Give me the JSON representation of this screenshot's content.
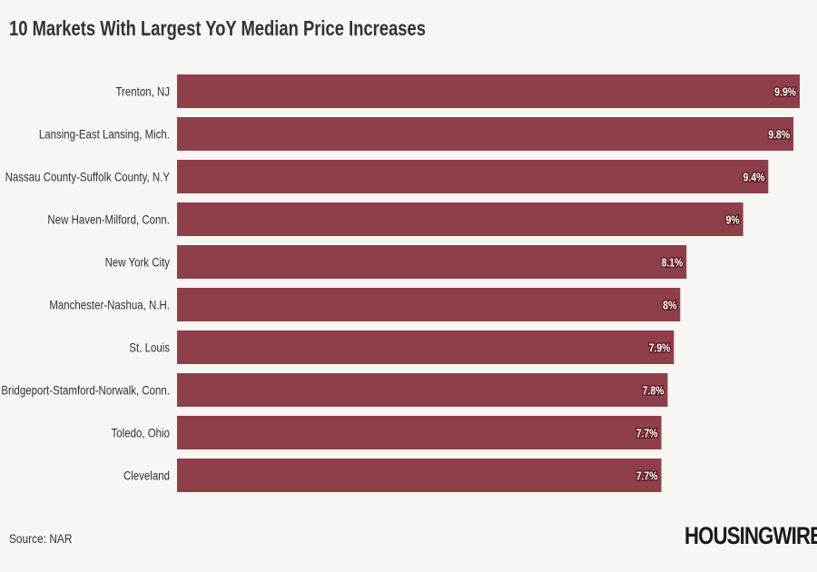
{
  "chart_data": {
    "type": "bar",
    "orientation": "horizontal",
    "title": "10 Markets With Largest YoY Median Price Increases",
    "categories": [
      "Trenton, NJ",
      "Lansing-East Lansing, Mich.",
      "Nassau County-Suffolk County, N.Y",
      "New Haven-Milford, Conn.",
      "New York City",
      "Manchester-Nashua, N.H.",
      "St. Louis",
      "Bridgeport-Stamford-Norwalk, Conn.",
      "Toledo, Ohio",
      "Cleveland"
    ],
    "values": [
      9.9,
      9.8,
      9.4,
      9,
      8.1,
      8,
      7.9,
      7.8,
      7.7,
      7.7
    ],
    "data_labels": [
      "9.9%",
      "9.8%",
      "9.4%",
      "9%",
      "8.1%",
      "8%",
      "7.9%",
      "7.8%",
      "7.7%",
      "7.7%"
    ],
    "xlim": [
      0,
      9.9
    ],
    "grid": false,
    "bar_color": "#8e3f4a"
  },
  "footer": {
    "source": "Source: NAR",
    "logo": "HOUSINGWIRE"
  }
}
